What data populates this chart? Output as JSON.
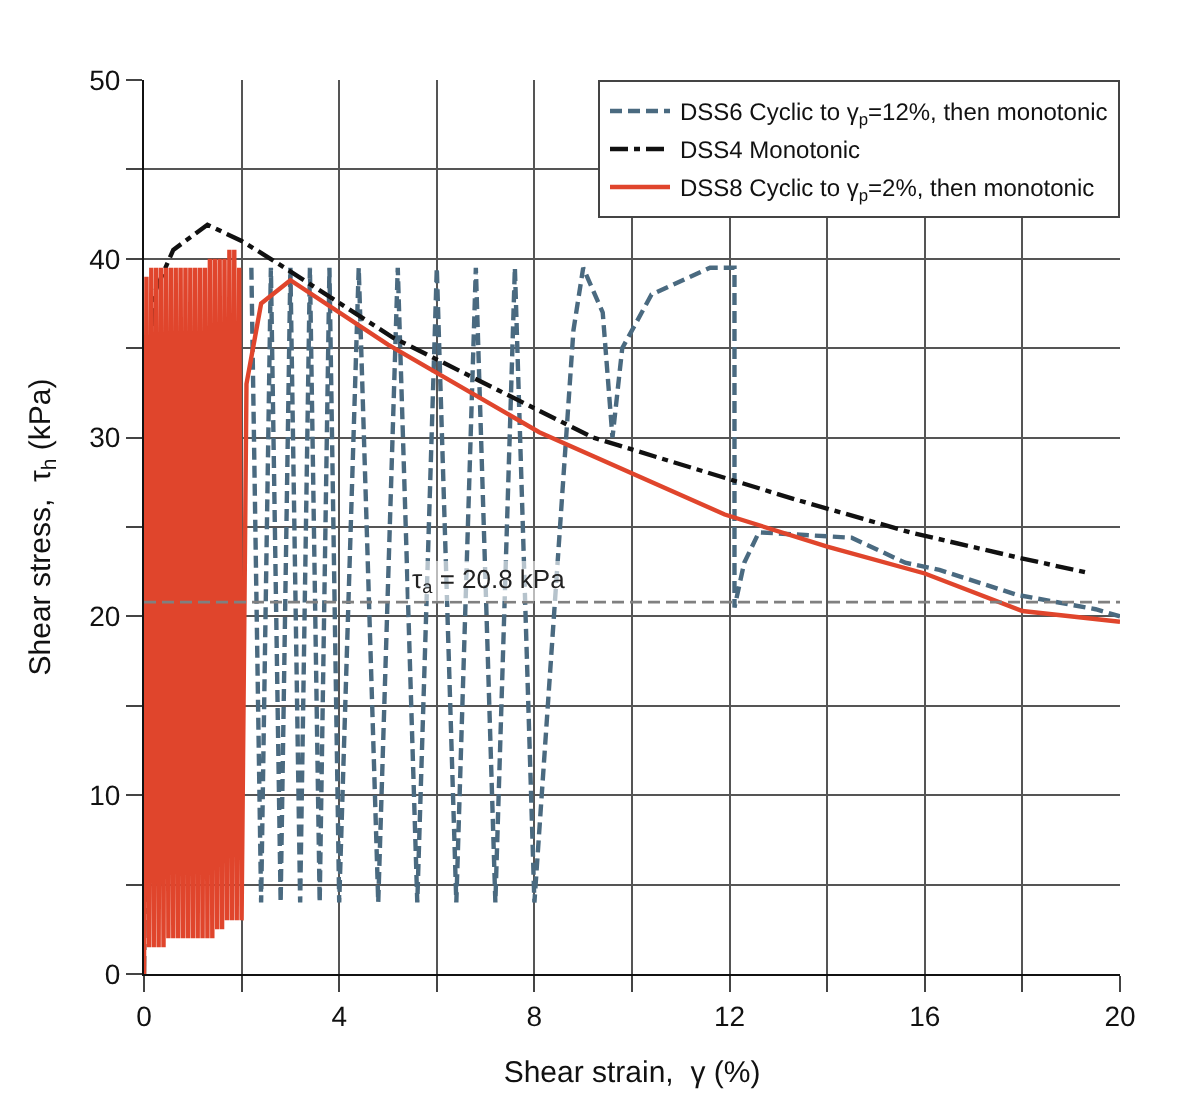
{
  "chart_data": {
    "type": "line",
    "xlabel": "Shear strain,  γ (%)",
    "ylabel": "Shear stress,  τ$_{h}$ (kPa)",
    "xlim": [
      0,
      20
    ],
    "ylim": [
      0,
      50
    ],
    "xticks": [
      0,
      {
        "value": 2,
        "label": null
      },
      4,
      {
        "value": 6,
        "label": null
      },
      8,
      {
        "value": 10,
        "label": null
      },
      12,
      {
        "value": 14,
        "label": null
      },
      16,
      {
        "value": 18,
        "label": null
      },
      20
    ],
    "yticks": [
      0,
      {
        "value": 5,
        "label": null
      },
      10,
      {
        "value": 15,
        "label": null
      },
      20,
      {
        "value": 25,
        "label": null
      },
      30,
      {
        "value": 35,
        "label": null
      },
      40,
      {
        "value": 45,
        "label": null
      },
      50
    ],
    "grid": true,
    "legend": "top right",
    "marker": "none",
    "ref_lines": [
      {
        "axis": "y",
        "value": 20.8,
        "label": "τ$_{a}$ = 20.8 kPa",
        "color": "#808080",
        "line_style": "dashed"
      }
    ],
    "series": [
      {
        "name": "DSS6 Cyclic to γ$_{p}$=12%, then monotonic",
        "color": "#4a6a80",
        "line_style": "dashed",
        "x": [
          2.2,
          2.4,
          2.6,
          2.8,
          3.0,
          3.2,
          3.4,
          3.6,
          3.8,
          4.0,
          4.4,
          4.8,
          5.2,
          5.6,
          6.0,
          6.4,
          6.8,
          7.2,
          7.6,
          8.0,
          8.4,
          8.8,
          9.0,
          9.4,
          9.6,
          9.8,
          10.4,
          11.6,
          12.1,
          12.1,
          12.3,
          12.6,
          14.5,
          15.6,
          16.3,
          17.9,
          19.5,
          20
        ],
        "values": [
          39.5,
          4,
          39.5,
          4,
          39.5,
          4,
          39.5,
          4,
          39.5,
          4,
          39.5,
          4,
          39.5,
          4,
          39.5,
          4,
          39.5,
          4,
          39.5,
          4,
          20,
          36,
          39.5,
          37,
          30,
          35,
          38,
          39.5,
          39.5,
          20.5,
          23,
          24.7,
          24.4,
          23.0,
          22.6,
          21.2,
          20.4,
          20.0
        ]
      },
      {
        "name": "DSS4 Monotonic",
        "color": "#111111",
        "line_style": "dashdot",
        "x": [
          0,
          0.05,
          0.2,
          0.6,
          1.3,
          2.0,
          2.65,
          5.1,
          9.2,
          13.4,
          15.7,
          17.9,
          19.4
        ],
        "values": [
          0,
          20,
          38,
          40.5,
          41.9,
          41.0,
          39.9,
          35.6,
          30.0,
          26.5,
          24.7,
          23.3,
          22.4
        ]
      },
      {
        "name": "DSS8 Cyclic to γ$_{p}$=2%, then monotonic",
        "color": "#e0452c",
        "line_style": "solid",
        "x": [
          0,
          0.05,
          0.1,
          0.15,
          0.2,
          0.25,
          0.3,
          0.35,
          0.4,
          0.45,
          0.5,
          0.55,
          0.6,
          0.65,
          0.7,
          0.75,
          0.8,
          0.85,
          0.9,
          0.95,
          1.0,
          1.05,
          1.1,
          1.15,
          1.2,
          1.25,
          1.3,
          1.35,
          1.4,
          1.45,
          1.5,
          1.55,
          1.6,
          1.65,
          1.7,
          1.75,
          1.8,
          1.85,
          1.9,
          1.95,
          2.0,
          2.1,
          2.4,
          3.0,
          5.0,
          8.1,
          11.9,
          14,
          16,
          18,
          20
        ],
        "values": [
          0,
          39,
          1.5,
          39.5,
          1.5,
          39.5,
          1.5,
          39.5,
          1.5,
          39.5,
          2,
          39.5,
          2,
          39.5,
          2,
          39.5,
          2,
          39.5,
          2,
          39.5,
          2,
          39.5,
          2,
          39.5,
          2,
          39.5,
          2,
          40,
          2,
          40,
          2.5,
          40,
          2.5,
          40,
          3,
          40.5,
          3,
          40.5,
          3,
          39.5,
          3,
          33,
          37.5,
          38.8,
          35.2,
          30.3,
          25.7,
          23.9,
          22.4,
          20.3,
          19.7
        ]
      }
    ]
  }
}
